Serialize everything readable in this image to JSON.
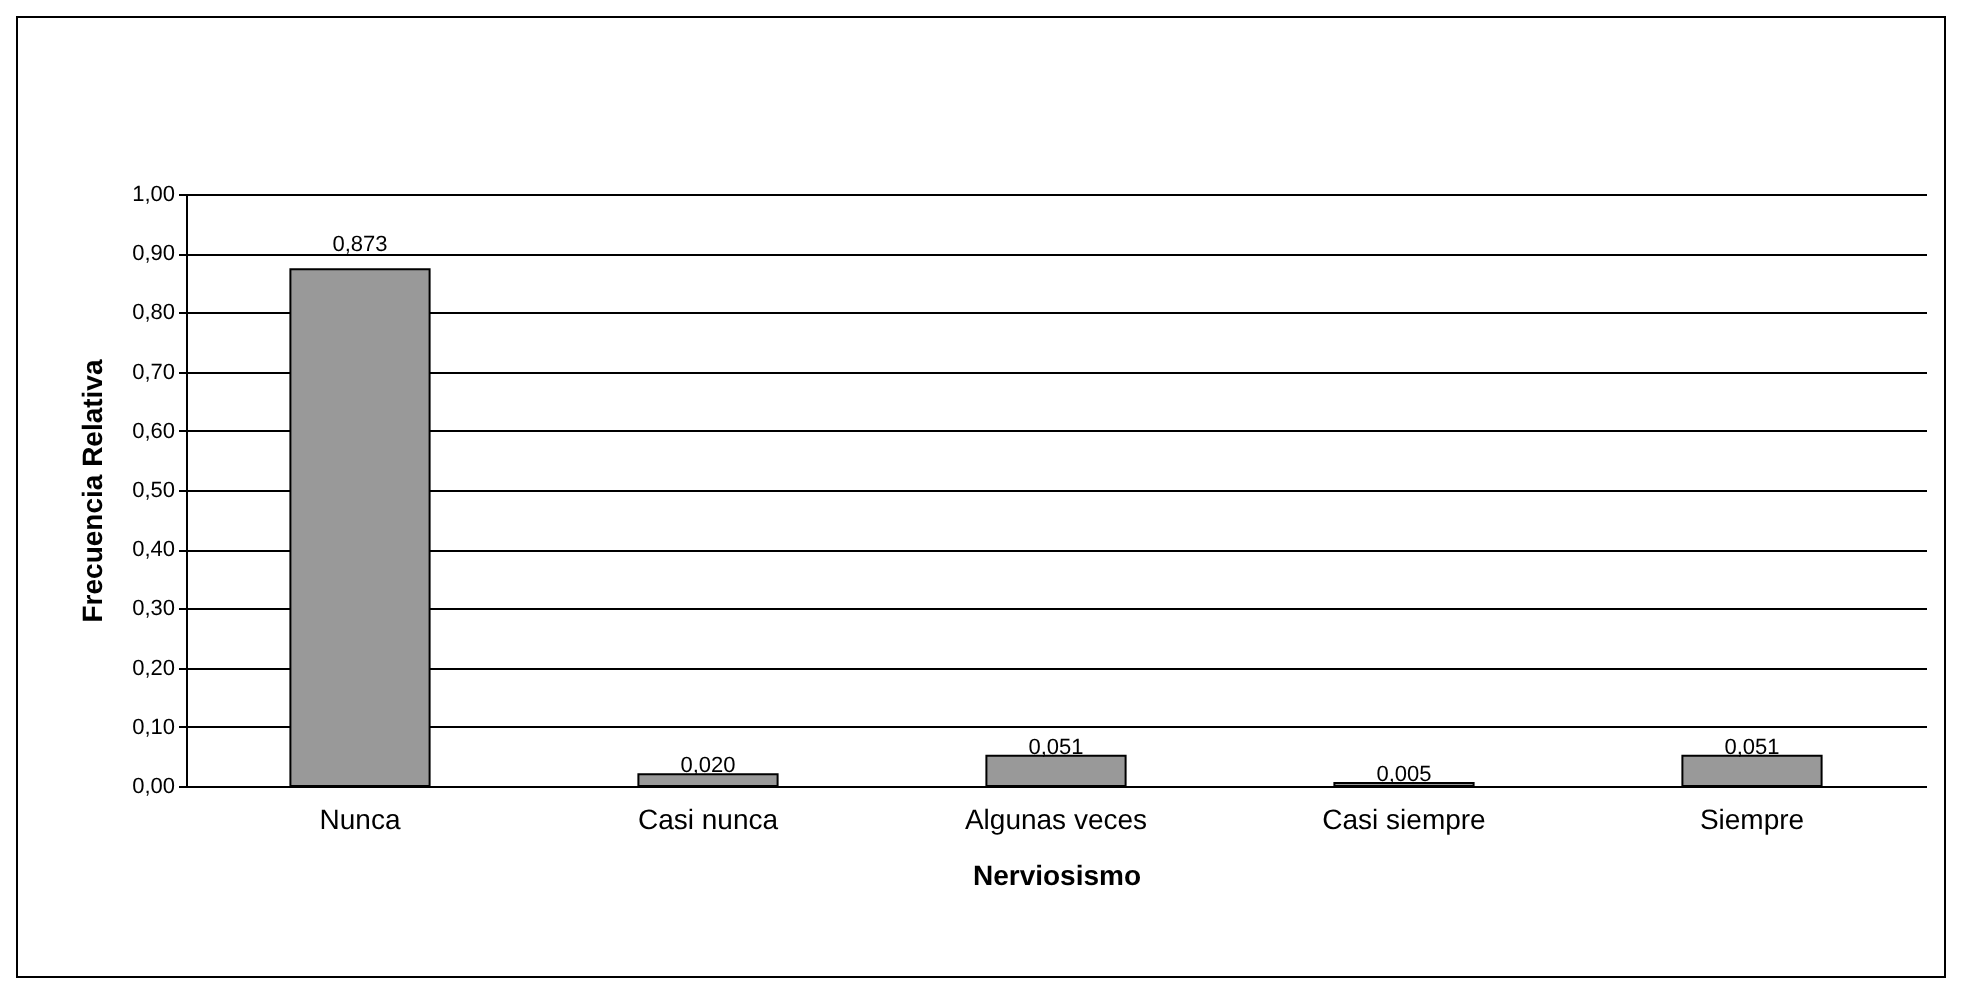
{
  "chart_data": {
    "type": "bar",
    "xlabel": "Nerviosismo",
    "ylabel": "Frecuencia Relativa",
    "categories": [
      "Nunca",
      "Casi nunca",
      "Algunas veces",
      "Casi siempre",
      "Siempre"
    ],
    "values": [
      0.873,
      0.02,
      0.051,
      0.005,
      0.051
    ],
    "value_labels": [
      "0,873",
      "0,020",
      "0,051",
      "0,005",
      "0,051"
    ],
    "color": "#999999",
    "ylim": [
      0,
      1
    ],
    "yticks": [
      {
        "value": 0,
        "label": "0,00"
      },
      {
        "value": 0.1,
        "label": "0,10"
      },
      {
        "value": 0.2,
        "label": "0,20"
      },
      {
        "value": 0.3,
        "label": "0,30"
      },
      {
        "value": 0.4,
        "label": "0,40"
      },
      {
        "value": 0.5,
        "label": "0,50"
      },
      {
        "value": 0.6,
        "label": "0,60"
      },
      {
        "value": 0.7,
        "label": "0,70"
      },
      {
        "value": 0.8,
        "label": "0,80"
      },
      {
        "value": 0.9,
        "label": "0,90"
      },
      {
        "value": 1,
        "label": "1,00"
      }
    ],
    "grid": "y"
  }
}
